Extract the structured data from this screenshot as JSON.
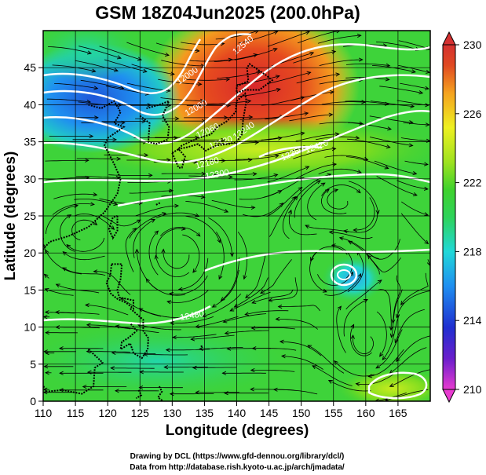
{
  "chart_data": {
    "type": "heatmap",
    "title": "GSM 18Z04Jun2025 (200.0hPa)",
    "xlabel": "Longitude (degrees)",
    "ylabel": "Latitude  (degrees)",
    "xlim": [
      110,
      170
    ],
    "ylim": [
      0,
      50
    ],
    "x_ticks": [
      110,
      115,
      120,
      125,
      130,
      135,
      140,
      145,
      150,
      155,
      160,
      165
    ],
    "y_ticks": [
      0,
      5,
      10,
      15,
      20,
      25,
      30,
      35,
      40,
      45
    ],
    "grid": true,
    "colorbar": {
      "min": 210,
      "max": 230,
      "ticks": [
        230,
        226,
        222,
        218,
        214,
        210
      ],
      "colors": [
        "#e83bd0",
        "#6a1ecc",
        "#1f2fd0",
        "#1f8ff0",
        "#21d8d8",
        "#2ed35a",
        "#3fd22d",
        "#9fe21f",
        "#eef021",
        "#f5a21f",
        "#e04a22",
        "#d43030"
      ]
    },
    "contour_labels": [
      "12000",
      "12000",
      "12060",
      "12120",
      "12180",
      "12240",
      "12300",
      "12360",
      "12420",
      "12480",
      "12540"
    ],
    "features": [
      {
        "name": "warm-core",
        "lon": 142,
        "lat": 43,
        "temp": 229
      },
      {
        "name": "cold-core",
        "lon": 118,
        "lat": 43,
        "temp": 216
      },
      {
        "name": "cool-spot",
        "lon": 156,
        "lat": 18,
        "temp": 219
      },
      {
        "name": "anticyclone",
        "lon": 156,
        "lat": 32,
        "temp": 223
      }
    ]
  },
  "credits": {
    "line1": "Drawing by DCL (https://www.gfd-dennou.org/library/dcl/)",
    "line2": "Data from http://database.rish.kyoto-u.ac.jp/arch/jmadata/"
  }
}
